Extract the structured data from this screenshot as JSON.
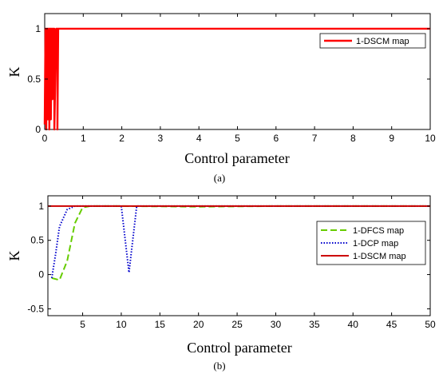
{
  "chart_data": [
    {
      "type": "line",
      "caption": "(a)",
      "xlabel": "Control parameter",
      "ylabel": "K",
      "xlim": [
        0,
        10
      ],
      "ylim": [
        0,
        1.15
      ],
      "xticks": [
        0,
        1,
        2,
        3,
        4,
        5,
        6,
        7,
        8,
        9,
        10
      ],
      "yticks": [
        0,
        0.5,
        1
      ],
      "grid": false,
      "legend_position": "top-right",
      "series": [
        {
          "name": "1-DSCM map",
          "color": "#ff0000",
          "style": "solid",
          "x": [
            0.0,
            0.02,
            0.02,
            0.04,
            0.04,
            0.06,
            0.06,
            0.08,
            0.08,
            0.1,
            0.1,
            0.12,
            0.12,
            0.14,
            0.14,
            0.16,
            0.16,
            0.18,
            0.18,
            0.2,
            0.2,
            0.22,
            0.22,
            0.25,
            0.25,
            0.3,
            0.3,
            0.33,
            0.33,
            0.35,
            0.35,
            10.0
          ],
          "y": [
            0.05,
            1,
            0.3,
            1,
            0,
            1,
            0.9,
            1,
            0.1,
            1,
            0.6,
            1,
            0,
            1,
            1,
            1,
            0.1,
            1,
            0.8,
            1,
            0.3,
            1,
            1,
            1,
            0,
            1,
            1,
            1,
            0,
            1,
            1,
            1
          ]
        }
      ]
    },
    {
      "type": "line",
      "caption": "(b)",
      "xlabel": "Control parameter",
      "ylabel": "K",
      "xlim": [
        0.5,
        50
      ],
      "ylim": [
        -0.6,
        1.15
      ],
      "xticks": [
        5,
        10,
        15,
        20,
        25,
        30,
        35,
        40,
        45,
        50
      ],
      "yticks": [
        -0.5,
        0,
        0.5,
        1
      ],
      "grid": false,
      "legend_position": "bottom-right",
      "series": [
        {
          "name": "1-DFCS map",
          "color": "#66cc00",
          "style": "dashed",
          "x": [
            1,
            2,
            3,
            4,
            5,
            6,
            10,
            20,
            30,
            40,
            50
          ],
          "y": [
            -0.05,
            -0.08,
            0.2,
            0.75,
            0.98,
            1,
            1,
            0.99,
            1,
            1,
            1
          ]
        },
        {
          "name": "1-DCP map",
          "color": "#0000cc",
          "style": "dotted",
          "x": [
            1,
            1.5,
            2,
            3,
            4,
            5,
            8,
            10,
            11,
            12,
            15,
            20,
            30,
            40,
            50
          ],
          "y": [
            -0.05,
            0.3,
            0.7,
            0.95,
            1,
            1,
            1,
            1,
            0.03,
            1,
            1,
            1,
            1,
            1,
            1
          ]
        },
        {
          "name": "1-DSCM map",
          "color": "#cc0000",
          "style": "solid",
          "x": [
            0.5,
            50
          ],
          "y": [
            1,
            1
          ]
        }
      ]
    }
  ]
}
